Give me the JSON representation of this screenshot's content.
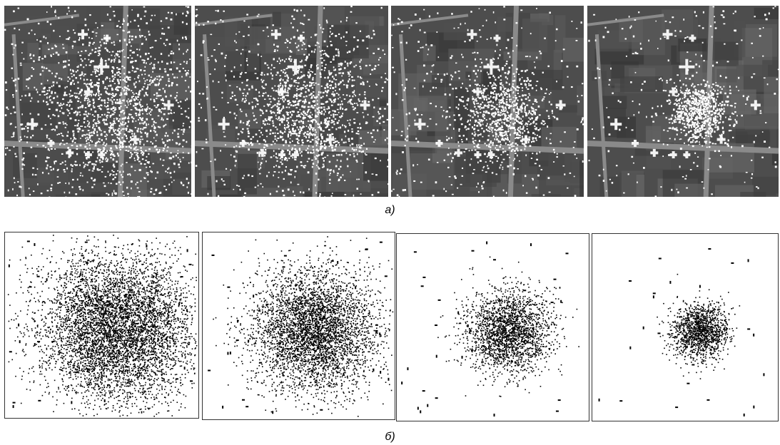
{
  "captions": {
    "a": "а)",
    "b": "б)"
  },
  "rows": {
    "a": {
      "description_kind": "satellite-images-with-noise",
      "panels": 4
    },
    "b": {
      "description_kind": "point-scatter",
      "panels": 4
    }
  },
  "colors": {
    "scatter_point": "#000000",
    "scatter_bg": "#ffffff",
    "sat_bg": "#4d4d4d",
    "noise": "#ffffff"
  },
  "spread_levels": [
    1.0,
    0.82,
    0.55,
    0.38
  ]
}
